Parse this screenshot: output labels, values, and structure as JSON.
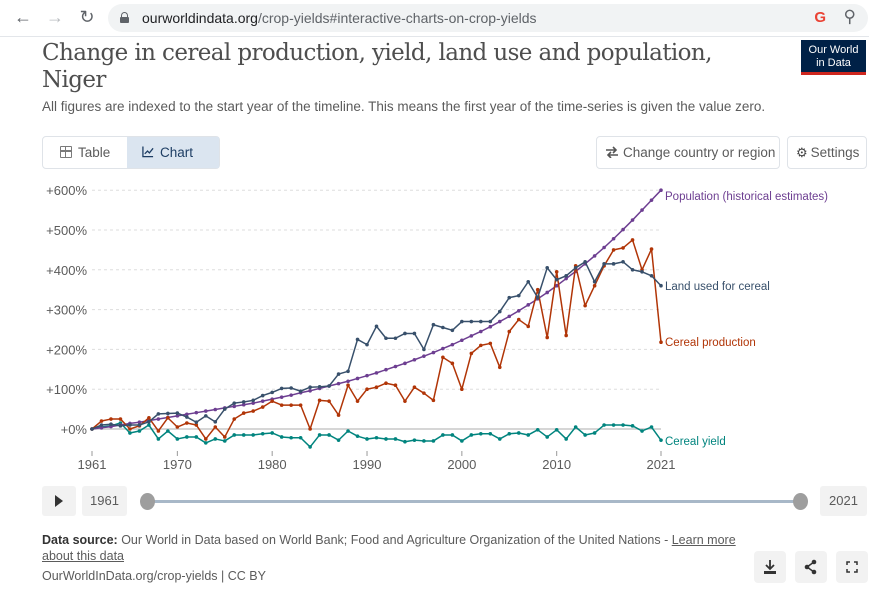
{
  "browser": {
    "url_host": "ourworldindata.org",
    "url_path": "/crop-yields#interactive-charts-on-crop-yields",
    "back_icon": "arrow-left-icon",
    "forward_icon": "arrow-right-icon",
    "reload_icon": "reload-icon",
    "google_icon_text": "G",
    "zoom_icon": "zoom-out-icon"
  },
  "header": {
    "title": "Change in cereal production, yield, land use and population, Niger",
    "subtitle": "All figures are indexed to the start year of the timeline. This means the first year of the time-series is given the value zero.",
    "logo_line1": "Our World",
    "logo_line2": "in Data"
  },
  "controls": {
    "tab_table": "Table",
    "tab_chart": "Chart",
    "active_tab": "Chart",
    "change_country": "Change country or region",
    "settings": "Settings"
  },
  "timeline": {
    "start_year": "1961",
    "end_year": "2021",
    "start_fraction": 0,
    "end_fraction": 1
  },
  "footer": {
    "source_label": "Data source:",
    "source_text": " Our World in Data based on World Bank; Food and Agriculture Organization of the United Nations - ",
    "learn_more": "Learn more about this data",
    "url_license": "OurWorldInData.org/crop-yields | CC BY"
  },
  "colors": {
    "population": "#6d3e91",
    "land": "#38506b",
    "production": "#b13507",
    "yield": "#00847e",
    "logo_bg": "#002147",
    "logo_accent": "#ce261e"
  },
  "chart_data": {
    "type": "line",
    "title": "Change in cereal production, yield, land use and population, Niger",
    "xlabel": "",
    "ylabel": "",
    "ylim": [
      -50,
      600
    ],
    "yticks": [
      0,
      100,
      200,
      300,
      400,
      500,
      600
    ],
    "ytick_labels": [
      "+0%",
      "+100%",
      "+200%",
      "+300%",
      "+400%",
      "+500%",
      "+600%"
    ],
    "xlim": [
      1961,
      2021
    ],
    "xticks": [
      1961,
      1970,
      1980,
      1990,
      2000,
      2010,
      2021
    ],
    "xtick_labels": [
      "1961",
      "1970",
      "1980",
      "1990",
      "2000",
      "2010",
      "2021"
    ],
    "grid": "horizontal-dashed",
    "legend": "line-end-labels",
    "x": [
      1961,
      1962,
      1963,
      1964,
      1965,
      1966,
      1967,
      1968,
      1969,
      1970,
      1971,
      1972,
      1973,
      1974,
      1975,
      1976,
      1977,
      1978,
      1979,
      1980,
      1981,
      1982,
      1983,
      1984,
      1985,
      1986,
      1987,
      1988,
      1989,
      1990,
      1991,
      1992,
      1993,
      1994,
      1995,
      1996,
      1997,
      1998,
      1999,
      2000,
      2001,
      2002,
      2003,
      2004,
      2005,
      2006,
      2007,
      2008,
      2009,
      2010,
      2011,
      2012,
      2013,
      2014,
      2015,
      2016,
      2017,
      2018,
      2019,
      2020,
      2021
    ],
    "series": [
      {
        "name": "Population (historical estimates)",
        "key": "population",
        "values": [
          0,
          3,
          6,
          10,
          14,
          17,
          21,
          25,
          29,
          33,
          37,
          41,
          45,
          49,
          53,
          57,
          61,
          65,
          70,
          75,
          80,
          85,
          91,
          96,
          102,
          108,
          114,
          120,
          127,
          134,
          141,
          149,
          157,
          165,
          174,
          183,
          192,
          202,
          212,
          223,
          234,
          245,
          257,
          270,
          283,
          297,
          312,
          327,
          343,
          360,
          378,
          396,
          415,
          435,
          456,
          478,
          501,
          525,
          550,
          575,
          600
        ]
      },
      {
        "name": "Land used for cereal",
        "key": "land",
        "values": [
          0,
          10,
          12,
          8,
          10,
          10,
          18,
          38,
          39,
          40,
          30,
          17,
          33,
          18,
          50,
          65,
          68,
          72,
          84,
          92,
          102,
          103,
          95,
          105,
          106,
          108,
          138,
          145,
          225,
          212,
          258,
          228,
          228,
          240,
          240,
          200,
          262,
          255,
          248,
          270,
          270,
          270,
          270,
          295,
          330,
          335,
          370,
          330,
          405,
          375,
          385,
          405,
          420,
          370,
          415,
          415,
          420,
          400,
          395,
          385,
          360
        ]
      },
      {
        "name": "Cereal production",
        "key": "production",
        "values": [
          0,
          20,
          25,
          25,
          0,
          8,
          28,
          -5,
          28,
          5,
          15,
          10,
          -25,
          5,
          -20,
          25,
          40,
          45,
          55,
          70,
          60,
          60,
          60,
          0,
          72,
          70,
          35,
          110,
          70,
          100,
          105,
          115,
          110,
          70,
          105,
          90,
          72,
          180,
          165,
          100,
          190,
          210,
          215,
          155,
          245,
          275,
          258,
          350,
          230,
          395,
          235,
          410,
          310,
          360,
          410,
          450,
          455,
          475,
          400,
          452,
          218
        ]
      },
      {
        "name": "Cereal yield",
        "key": "yield",
        "values": [
          0,
          5,
          8,
          15,
          -10,
          -5,
          10,
          -25,
          -5,
          -25,
          -20,
          -20,
          -35,
          -25,
          -30,
          -15,
          -15,
          -15,
          -12,
          -10,
          -20,
          -22,
          -22,
          -45,
          -15,
          -15,
          -28,
          -5,
          -18,
          -25,
          -22,
          -25,
          -25,
          -32,
          -28,
          -30,
          -30,
          -15,
          -15,
          -30,
          -15,
          -12,
          -12,
          -25,
          -12,
          -10,
          -15,
          -2,
          -20,
          -2,
          -25,
          5,
          -15,
          -10,
          10,
          10,
          10,
          8,
          -5,
          5,
          -28
        ]
      }
    ]
  }
}
